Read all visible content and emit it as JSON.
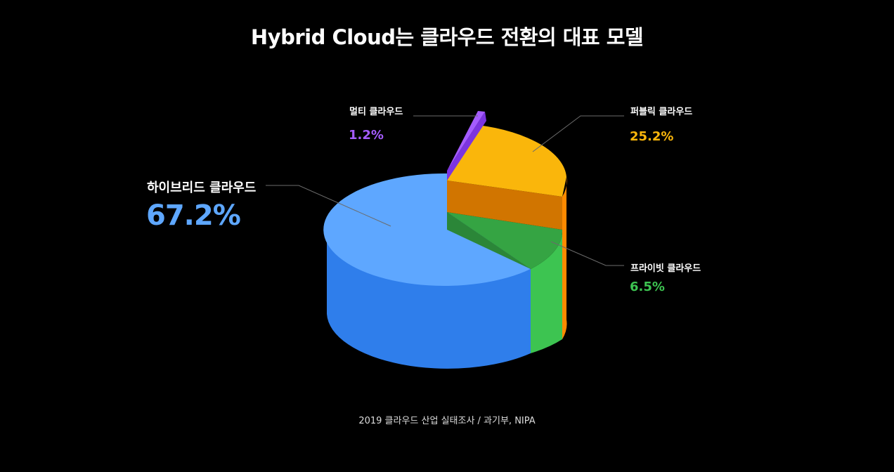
{
  "title": "Hybrid Cloud는 클라우드 전환의 대표 모델",
  "source": "2019 클라우드 산업 실태조사 / 과기부, NIPA",
  "chart_data": {
    "type": "pie",
    "title": "Hybrid Cloud는 클라우드 전환의 대표 모델",
    "slices": [
      {
        "label": "하이브리드 클라우드",
        "value": 67.2,
        "value_label": "67.2%",
        "color": "#5ea7ff",
        "side_color": "#2f7eeb",
        "exploded": false
      },
      {
        "label": "멀티 클라우드",
        "value": 1.2,
        "value_label": "1.2%",
        "color": "#a55cff",
        "side_color": "#7c34e0",
        "exploded": true
      },
      {
        "label": "퍼블릭 클라우드",
        "value": 25.2,
        "value_label": "25.2%",
        "color": "#fab60b",
        "side_color": "#ff8a00",
        "exploded": true
      },
      {
        "label": "프라이빗 클라우드",
        "value": 6.5,
        "value_label": "6.5%",
        "color": "#35a443",
        "side_color": "#3dc451",
        "exploded": false
      }
    ]
  }
}
